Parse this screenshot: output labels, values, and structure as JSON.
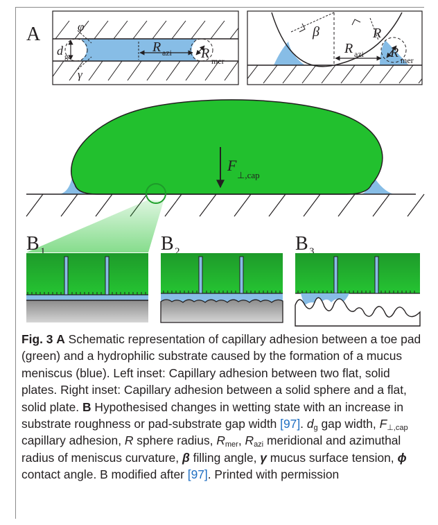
{
  "colors": {
    "pad_green": "#22c02e",
    "mucus_blue": "#87bde6",
    "substrate_grey": "#a8a8a8",
    "ink": "#231f20",
    "link_blue": "#1f6fc2"
  },
  "panel_a": {
    "label": "A",
    "left_inset": {
      "phi": "φ",
      "d": "d",
      "g_sub": "g",
      "gamma": "γ",
      "R": "R",
      "azi_sub": "azi",
      "R2": "R",
      "mer_sub": "mer"
    },
    "right_inset": {
      "beta": "β",
      "R_top": "R",
      "R": "R",
      "azi_sub": "azi",
      "R2": "R",
      "mer_sub": "mer"
    }
  },
  "main": {
    "force_F": "F",
    "force_sub": "⊥,cap"
  },
  "panel_b": {
    "b1_label": "B",
    "b1_sub": "1",
    "b2_label": "B",
    "b2_sub": "2",
    "b3_label": "B",
    "b3_sub": "3"
  },
  "caption": {
    "fig_label": "Fig. 3",
    "a_label": "A",
    "text1": " Schematic representation of capillary adhesion between a toe pad (green) and a hydrophilic substrate caused by the formation of a mucus meniscus (blue). Left inset: Capillary adhesion between two flat, solid plates. Right inset: Capillary adhesion between a solid sphere and a flat, solid plate. ",
    "b_label": "B",
    "text2": " Hypothesised changes in wetting state with an increase in substrate roughness or pad-substrate gap width ",
    "ref1": "[97]",
    "text3": ". ",
    "dg_d": "d",
    "dg_sub": "g",
    "text4": " gap width, ",
    "F": "F",
    "F_sub": "⊥,cap",
    "text5": " capillary adhesion, ",
    "R": "R",
    "text6": " sphere radius, ",
    "Rmer": "R",
    "Rmer_sub": "mer",
    "comma": ", ",
    "Razi": "R",
    "Razi_sub": "azi",
    "text7": " meridional and azimuthal radius of meniscus curvature, ",
    "beta": "β",
    "text8": " filling angle, ",
    "gamma": "γ",
    "text9": " mucus surface tension, ",
    "phi": "ϕ",
    "text10": " contact angle. B modified after ",
    "ref2": "[97]",
    "text11": ". Printed with permission"
  }
}
